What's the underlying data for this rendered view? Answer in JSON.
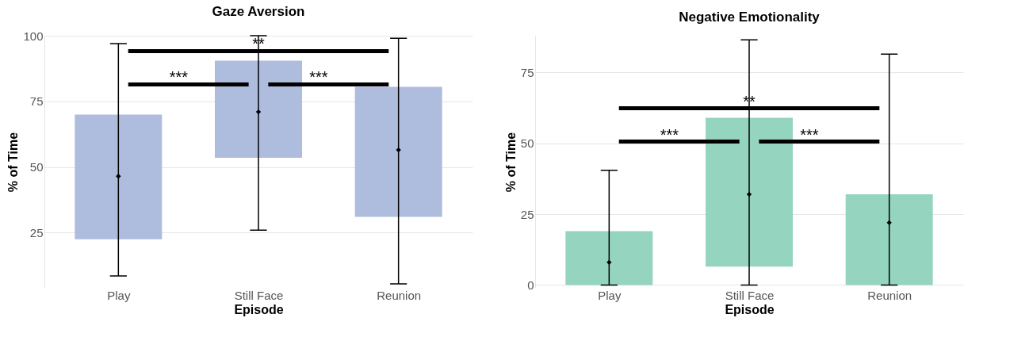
{
  "chart_data": [
    {
      "type": "bar",
      "title": "Gaze Aversion",
      "xlabel": "Episode",
      "ylabel": "% of Time",
      "categories": [
        "Play",
        "Still Face",
        "Reunion"
      ],
      "ylim": [
        4,
        100
      ],
      "yticks": [
        25,
        50,
        75,
        100
      ],
      "grid": "y",
      "series": [
        {
          "type": "bar",
          "color": "#aab8dc",
          "base": [
            22.5,
            53.5,
            31
          ],
          "values": [
            47.5,
            37,
            49.5
          ]
        },
        {
          "type": "scatter",
          "color": "#000000",
          "marker": "diamond",
          "values": [
            46.5,
            71,
            56.5
          ],
          "errors": [
            [
              8.5,
              97
            ],
            [
              26,
              100
            ],
            [
              5.5,
              99
            ]
          ]
        }
      ],
      "annotations": [
        "**",
        "***",
        "***"
      ]
    },
    {
      "type": "bar",
      "title": "Negative Emotionality",
      "xlabel": "Episode",
      "ylabel": "% of Time",
      "categories": [
        "Play",
        "Still Face",
        "Reunion"
      ],
      "ylim": [
        -1,
        88
      ],
      "yticks": [
        0,
        25,
        50,
        75
      ],
      "grid": "y",
      "series": [
        {
          "type": "bar",
          "color": "#8fd3bc",
          "base": [
            0,
            6.5,
            0
          ],
          "values": [
            19,
            52.5,
            32
          ]
        },
        {
          "type": "scatter",
          "color": "#000000",
          "marker": "diamond",
          "values": [
            8,
            32,
            22
          ],
          "errors": [
            [
              0,
              40.5
            ],
            [
              0,
              86.5
            ],
            [
              0,
              81.5
            ]
          ]
        }
      ],
      "annotations": [
        "**",
        "***",
        "***"
      ]
    }
  ]
}
